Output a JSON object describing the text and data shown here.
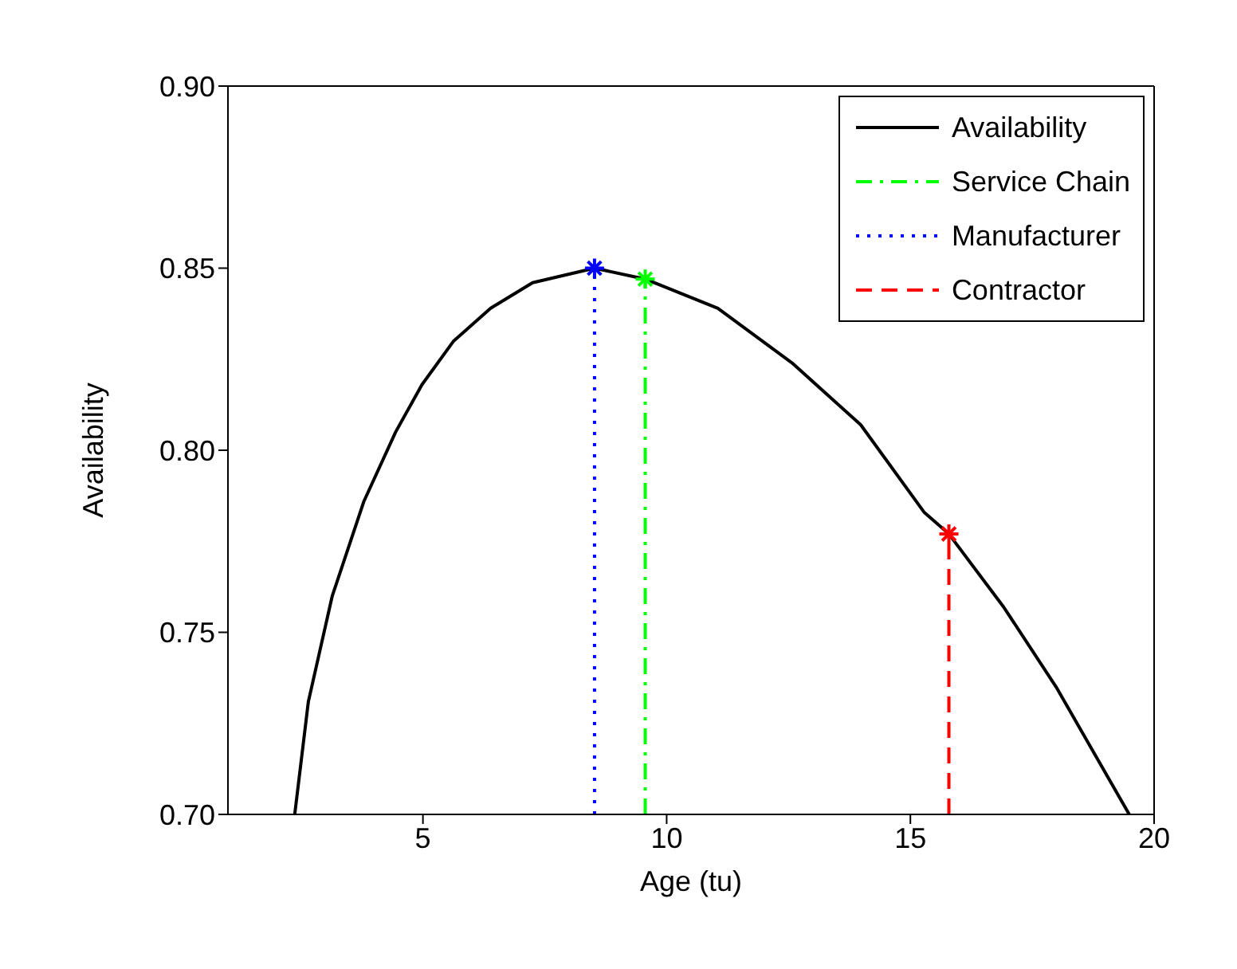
{
  "chart_data": {
    "type": "line",
    "xlabel": "Age (tu)",
    "ylabel": "Availability",
    "xlim": [
      1,
      20
    ],
    "ylim": [
      0.7,
      0.9
    ],
    "xticks": [
      5,
      10,
      15,
      20
    ],
    "yticks": [
      {
        "value": 0.7,
        "label": "0.70"
      },
      0.75,
      {
        "value": 0.8,
        "label": "0.80"
      },
      0.85,
      {
        "value": 0.9,
        "label": "0.90"
      }
    ],
    "grid": false,
    "legend": "top right",
    "series": [
      {
        "name": "Availability",
        "color": "#000000",
        "line_style": "solid",
        "x": [
          2.37,
          2.65,
          3.14,
          3.79,
          4.44,
          4.98,
          5.63,
          6.39,
          7.25,
          8.52,
          9.56,
          11.05,
          12.57,
          13.98,
          15.28,
          15.79,
          16.91,
          17.99,
          19.49
        ],
        "values": [
          0.7,
          0.731,
          0.76,
          0.786,
          0.805,
          0.818,
          0.83,
          0.839,
          0.846,
          0.85,
          0.847,
          0.839,
          0.824,
          0.807,
          0.783,
          0.777,
          0.757,
          0.735,
          0.7
        ]
      },
      {
        "name": "Service Chain",
        "color": "#00ff00",
        "line_style": "dashdot",
        "x": [
          9.56,
          9.56
        ],
        "values": [
          0.7,
          0.847
        ]
      },
      {
        "name": "Manufacturer",
        "color": "#0000ff",
        "line_style": "dotted",
        "x": [
          8.52,
          8.52
        ],
        "values": [
          0.7,
          0.85
        ]
      },
      {
        "name": "Contractor",
        "color": "#ff0000",
        "line_style": "dashed",
        "x": [
          15.79,
          15.79
        ],
        "values": [
          0.7,
          0.777
        ]
      },
      {
        "type": "scatter",
        "color": "#0000ff",
        "marker": "cross",
        "x": [
          8.52
        ],
        "values": [
          0.85
        ]
      },
      {
        "type": "scatter",
        "color": "#00ff00",
        "marker": "cross",
        "x": [
          9.56
        ],
        "values": [
          0.847
        ]
      },
      {
        "type": "scatter",
        "color": "#ff0000",
        "marker": "cross",
        "x": [
          15.79
        ],
        "values": [
          0.777
        ]
      }
    ]
  }
}
